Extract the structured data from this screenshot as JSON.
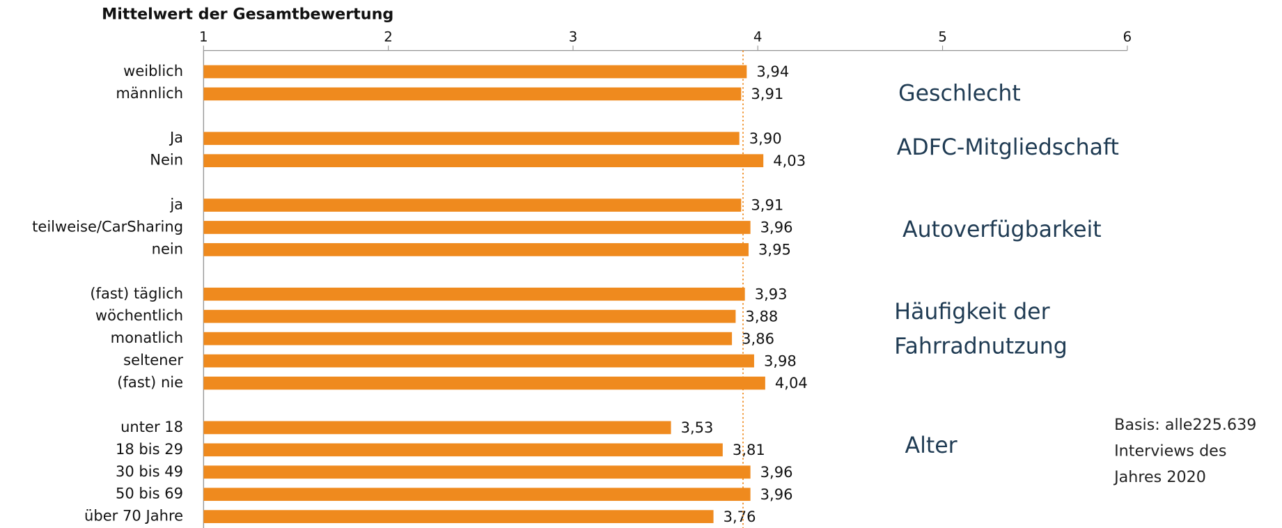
{
  "chart_data": {
    "type": "bar",
    "orientation": "horizontal",
    "x_label": "Mittelwert der Gesamtbewertung",
    "categories": [
      "weiblich",
      "männlich",
      null,
      "Ja",
      "Nein",
      null,
      "ja",
      "teilweise/CarSharing",
      "nein",
      null,
      "(fast) täglich",
      "wöchentlich",
      "monatlich",
      "seltener",
      "(fast) nie",
      null,
      "unter 18",
      "18 bis 29",
      "30 bis 49",
      "50 bis 69",
      "über 70 Jahre"
    ],
    "values": [
      3.94,
      3.91,
      null,
      3.9,
      4.03,
      null,
      3.91,
      3.96,
      3.95,
      null,
      3.93,
      3.88,
      3.86,
      3.98,
      4.04,
      null,
      3.53,
      3.81,
      3.96,
      3.96,
      3.76
    ],
    "value_labels": [
      "3,94",
      "3,91",
      null,
      "3,90",
      "4,03",
      null,
      "3,91",
      "3,96",
      "3,95",
      null,
      "3,93",
      "3,88",
      "3,86",
      "3,98",
      "4,04",
      null,
      "3,53",
      "3,81",
      "3,96",
      "3,96",
      "3,76"
    ],
    "color": "#ef8a1e",
    "xlim": [
      1,
      6
    ],
    "xticks": [
      1,
      2,
      3,
      4,
      5,
      6
    ],
    "reference_line": 3.92,
    "annotations": [
      "Geschlecht",
      "ADFC-Mitgliedschaft",
      "Autoverfügbarkeit",
      "Häufigkeit der",
      "Fahrradnutzung",
      "Alter"
    ],
    "note": [
      "Basis: alle225.639",
      "Interviews des",
      "Jahres 2020"
    ]
  }
}
